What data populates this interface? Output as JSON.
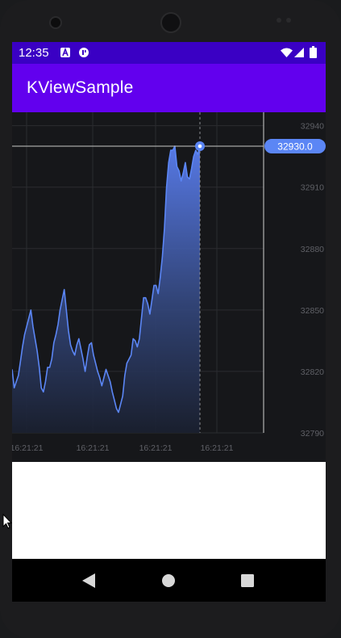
{
  "status_bar": {
    "time": "12:35",
    "left_icons": [
      "notification-a-icon",
      "app-circle-icon"
    ],
    "right_icons": [
      "wifi-icon",
      "signal-icon",
      "battery-icon"
    ]
  },
  "app_bar": {
    "title": "KViewSample"
  },
  "chart_data": {
    "type": "area",
    "title": "",
    "xlabel": "",
    "ylabel": "",
    "ylim": [
      32790,
      32945
    ],
    "y_ticks": [
      "32940",
      "32910",
      "32880",
      "32850",
      "32820",
      "32790"
    ],
    "x_ticks": [
      "16:21:21",
      "16:21:21",
      "16:21:21",
      "16:21:21"
    ],
    "crosshair_value": "32930.0",
    "series": [
      {
        "color": "#5b86f5",
        "values": [
          32821,
          32812,
          32815,
          32818,
          32825,
          32832,
          32838,
          32842,
          32846,
          32850,
          32842,
          32836,
          32830,
          32822,
          32812,
          32810,
          32815,
          32822,
          32822,
          32826,
          32834,
          32838,
          32843,
          32850,
          32855,
          32860,
          32850,
          32840,
          32833,
          32830,
          32828,
          32833,
          32836,
          32831,
          32826,
          32820,
          32827,
          32833,
          32834,
          32828,
          32824,
          32820,
          32817,
          32813,
          32817,
          32821,
          32818,
          32815,
          32810,
          32806,
          32802,
          32800,
          32804,
          32808,
          32818,
          32824,
          32826,
          32828,
          32836,
          32835,
          32832,
          32836,
          32846,
          32856,
          32856,
          32853,
          32848,
          32855,
          32862,
          32862,
          32858,
          32866,
          32876,
          32890,
          32910,
          32922,
          32928,
          32928,
          32930,
          32920,
          32918,
          32913,
          32917,
          32922,
          32915,
          32914,
          32919,
          32925,
          32928,
          32926,
          32930
        ]
      }
    ],
    "grid": true
  }
}
